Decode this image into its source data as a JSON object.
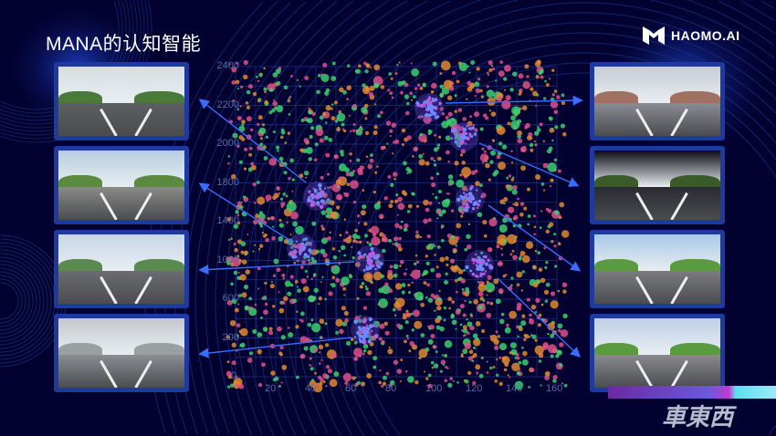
{
  "slide": {
    "title": "MANA的认知智能"
  },
  "logo": {
    "text": "HAOMO.AI"
  },
  "watermark": {
    "text": "車東西"
  },
  "colors": {
    "background": "#02012f",
    "accent": "#2b5cff",
    "frame": "#1f3a9e"
  },
  "photos": {
    "left": [
      {
        "scene": "highway-overcast"
      },
      {
        "scene": "road-with-sign"
      },
      {
        "scene": "mountain-highway"
      },
      {
        "scene": "foggy-highway"
      }
    ],
    "right": [
      {
        "scene": "city-crosswalk"
      },
      {
        "scene": "night-road"
      },
      {
        "scene": "urban-traffic"
      },
      {
        "scene": "tree-lined-road"
      }
    ]
  },
  "chart_data": {
    "type": "scatter",
    "title": "",
    "xlabel": "",
    "ylabel": "",
    "x_ticks": [
      "20",
      "40",
      "60",
      "80",
      "100",
      "120",
      "140",
      "160"
    ],
    "y_ticks": [
      "2400",
      "2200",
      "2000",
      "1800",
      "1400",
      "1000",
      "600",
      "200",
      "0."
    ],
    "grid": true,
    "series_colors": [
      "#e0508a",
      "#3ad070",
      "#e08a30",
      "#b050d0"
    ],
    "clusters": 8
  }
}
